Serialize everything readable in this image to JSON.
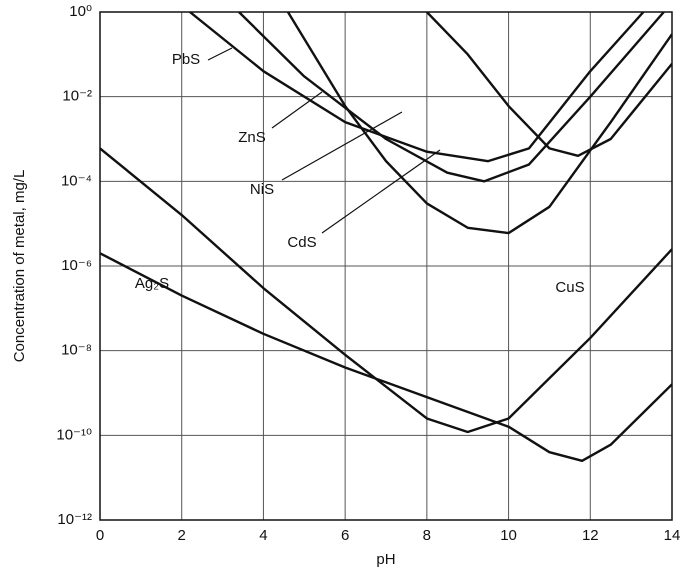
{
  "chart_data": {
    "type": "line",
    "x_label": "pH",
    "y_label": "Concentration of metal, mg/L",
    "xlim": [
      0,
      14
    ],
    "xticks": [
      0,
      2,
      4,
      6,
      8,
      10,
      12,
      14
    ],
    "ylim": [
      1e-12,
      1
    ],
    "log_y": true,
    "yticks": [
      {
        "value": 1e-12,
        "label": "10⁻¹²"
      },
      {
        "value": 1e-10,
        "label": "10⁻¹⁰"
      },
      {
        "value": 1e-08,
        "label": "10⁻⁸"
      },
      {
        "value": 1e-06,
        "label": "10⁻⁶"
      },
      {
        "value": 0.0001,
        "label": "10⁻⁴"
      },
      {
        "value": 0.01,
        "label": "10⁻²"
      },
      {
        "value": 1,
        "label": "10⁰"
      }
    ],
    "grid": true,
    "series": [
      {
        "name": "PbS",
        "color": "#111111",
        "x": [
          2.2,
          4,
          6,
          8,
          9.5,
          10.5,
          12,
          13.3
        ],
        "values": [
          1,
          0.04,
          0.0025,
          0.0005,
          0.0003,
          0.0006,
          0.04,
          1
        ]
      },
      {
        "name": "ZnS",
        "color": "#111111",
        "x": [
          3.4,
          5,
          7,
          8.5,
          9.4,
          10.5,
          12,
          13.8
        ],
        "values": [
          1,
          0.03,
          0.001,
          0.00016,
          0.0001,
          0.00025,
          0.01,
          1
        ]
      },
      {
        "name": "NiS",
        "color": "#111111",
        "x": [
          8,
          9,
          10,
          11,
          11.7,
          12.5,
          14
        ],
        "values": [
          1,
          0.1,
          0.006,
          0.0006,
          0.0004,
          0.001,
          0.06
        ]
      },
      {
        "name": "CdS",
        "color": "#111111",
        "x": [
          4.6,
          6,
          7,
          8,
          9,
          10,
          11,
          12.5,
          14
        ],
        "values": [
          1,
          0.006,
          0.0003,
          3e-05,
          8e-06,
          6e-06,
          2.5e-05,
          0.0025,
          0.3
        ]
      },
      {
        "name": "Ag₂S",
        "color": "#111111",
        "x": [
          0,
          2,
          4,
          6,
          8,
          10,
          11,
          11.8,
          12.5,
          14
        ],
        "values": [
          2e-06,
          2e-07,
          2.5e-08,
          4e-09,
          8e-10,
          1.6e-10,
          4e-11,
          2.5e-11,
          6e-11,
          1.6e-09
        ]
      },
      {
        "name": "CuS",
        "color": "#111111",
        "x": [
          0,
          2,
          4,
          6,
          8,
          9,
          10,
          12,
          14
        ],
        "values": [
          0.0006,
          1.6e-05,
          3e-07,
          8e-09,
          2.5e-10,
          1.2e-10,
          2.5e-10,
          2e-08,
          2.5e-06
        ]
      }
    ]
  }
}
